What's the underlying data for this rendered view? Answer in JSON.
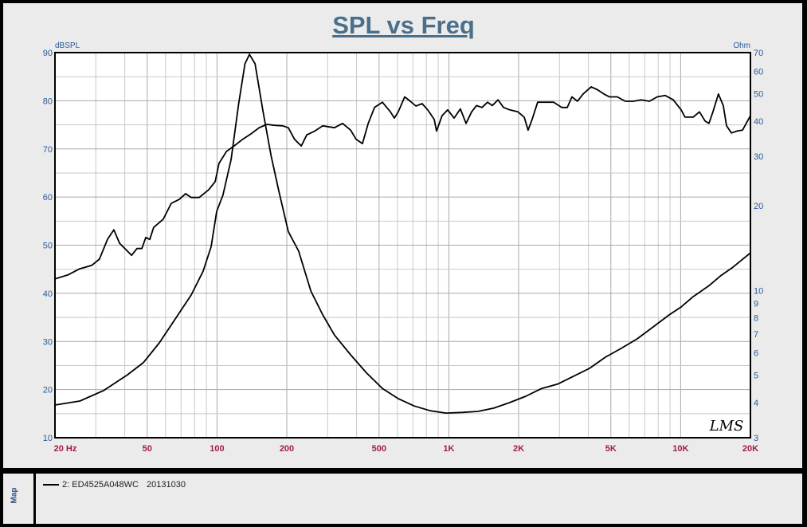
{
  "chart_data": {
    "type": "line",
    "title": "SPL vs Freq",
    "ylabel": "dBSPL",
    "y2label": "Ohm",
    "xscale": "log",
    "y2scale": "log",
    "xlim": [
      20,
      20000
    ],
    "ylim": [
      10,
      90
    ],
    "y2lim": [
      3,
      70
    ],
    "grid": true,
    "x_tick_labels": [
      {
        "v": 20,
        "t": "20  Hz"
      },
      {
        "v": 50,
        "t": "50"
      },
      {
        "v": 100,
        "t": "100"
      },
      {
        "v": 200,
        "t": "200"
      },
      {
        "v": 500,
        "t": "500"
      },
      {
        "v": 1000,
        "t": "1K"
      },
      {
        "v": 2000,
        "t": "2K"
      },
      {
        "v": 5000,
        "t": "5K"
      },
      {
        "v": 10000,
        "t": "10K"
      },
      {
        "v": 20000,
        "t": "20K"
      }
    ],
    "y_ticks": [
      10,
      20,
      30,
      40,
      50,
      60,
      70,
      80,
      90
    ],
    "y2_ticks": [
      3,
      4,
      5,
      6,
      7,
      8,
      9,
      10,
      20,
      30,
      40,
      50,
      60,
      70
    ],
    "colors": {
      "title": "#4a6f8a",
      "axis_left": "#2a5a9a",
      "axis_right": "#2a5a9a",
      "x_ticks": "#a01c48",
      "curve": "#000000",
      "grid": "#c8c8c8"
    },
    "series": [
      {
        "axis": "left",
        "unit": "dBSPL",
        "points": [
          [
            20,
            43.0
          ],
          [
            22.7,
            43.8
          ],
          [
            25.6,
            45.1
          ],
          [
            28.8,
            45.8
          ],
          [
            31.1,
            47.1
          ],
          [
            33.7,
            51.2
          ],
          [
            35.9,
            53.2
          ],
          [
            38,
            50.4
          ],
          [
            40.4,
            49.1
          ],
          [
            42.8,
            47.9
          ],
          [
            45.2,
            49.3
          ],
          [
            47.4,
            49.3
          ],
          [
            49.3,
            51.6
          ],
          [
            51.3,
            51.2
          ],
          [
            53.3,
            53.7
          ],
          [
            58.6,
            55.4
          ],
          [
            63.5,
            58.7
          ],
          [
            68.7,
            59.5
          ],
          [
            73.2,
            60.7
          ],
          [
            77.4,
            59.9
          ],
          [
            83.8,
            59.9
          ],
          [
            92,
            61.5
          ],
          [
            98.2,
            63.2
          ],
          [
            102,
            67.0
          ],
          [
            110,
            69.5
          ],
          [
            120,
            70.8
          ],
          [
            129,
            72.0
          ],
          [
            140,
            73.1
          ],
          [
            152,
            74.4
          ],
          [
            164,
            75.1
          ],
          [
            177,
            74.9
          ],
          [
            192,
            74.8
          ],
          [
            203,
            74.4
          ],
          [
            216,
            72.0
          ],
          [
            231,
            70.6
          ],
          [
            244,
            72.9
          ],
          [
            264,
            73.7
          ],
          [
            286,
            74.8
          ],
          [
            321,
            74.4
          ],
          [
            348,
            75.3
          ],
          [
            377,
            73.9
          ],
          [
            398,
            72.0
          ],
          [
            424,
            71.1
          ],
          [
            449,
            75.3
          ],
          [
            478,
            78.6
          ],
          [
            517,
            79.7
          ],
          [
            560,
            77.7
          ],
          [
            582,
            76.4
          ],
          [
            605,
            77.7
          ],
          [
            645,
            80.8
          ],
          [
            682,
            79.9
          ],
          [
            721,
            78.9
          ],
          [
            767,
            79.4
          ],
          [
            811,
            78.1
          ],
          [
            865,
            76.1
          ],
          [
            885,
            73.7
          ],
          [
            935,
            76.9
          ],
          [
            989,
            78.1
          ],
          [
            1054,
            76.4
          ],
          [
            1122,
            78.3
          ],
          [
            1186,
            75.3
          ],
          [
            1254,
            77.7
          ],
          [
            1316,
            79.0
          ],
          [
            1390,
            78.6
          ],
          [
            1469,
            79.7
          ],
          [
            1542,
            79.0
          ],
          [
            1629,
            80.2
          ],
          [
            1722,
            78.6
          ],
          [
            1832,
            78.1
          ],
          [
            1986,
            77.7
          ],
          [
            2114,
            76.6
          ],
          [
            2198,
            73.9
          ],
          [
            2286,
            76.1
          ],
          [
            2416,
            79.7
          ],
          [
            2618,
            79.7
          ],
          [
            2832,
            79.7
          ],
          [
            3069,
            78.6
          ],
          [
            3243,
            78.6
          ],
          [
            3396,
            80.8
          ],
          [
            3589,
            79.9
          ],
          [
            3793,
            81.4
          ],
          [
            4111,
            82.9
          ],
          [
            4375,
            82.3
          ],
          [
            4667,
            81.4
          ],
          [
            4931,
            80.8
          ],
          [
            5333,
            80.8
          ],
          [
            5768,
            79.9
          ],
          [
            6252,
            79.9
          ],
          [
            6761,
            80.2
          ],
          [
            7328,
            79.9
          ],
          [
            7925,
            80.8
          ],
          [
            8570,
            81.1
          ],
          [
            9290,
            80.2
          ],
          [
            10046,
            78.1
          ],
          [
            10447,
            76.6
          ],
          [
            11324,
            76.6
          ],
          [
            12052,
            77.7
          ],
          [
            12735,
            75.8
          ],
          [
            13243,
            75.3
          ],
          [
            13773,
            77.7
          ],
          [
            14555,
            81.4
          ],
          [
            15276,
            79.0
          ],
          [
            15777,
            74.8
          ],
          [
            16558,
            73.3
          ],
          [
            17500,
            73.7
          ],
          [
            18494,
            73.9
          ],
          [
            20000,
            76.9
          ]
        ]
      },
      {
        "axis": "right",
        "unit": "Ohm",
        "points": [
          [
            20,
            3.92
          ],
          [
            25.6,
            4.05
          ],
          [
            32.4,
            4.41
          ],
          [
            41.1,
            5.02
          ],
          [
            48.1,
            5.54
          ],
          [
            56.4,
            6.52
          ],
          [
            66.1,
            7.93
          ],
          [
            77.4,
            9.64
          ],
          [
            87.1,
            11.7
          ],
          [
            94.3,
            14.3
          ],
          [
            99.7,
            19.1
          ],
          [
            106,
            21.8
          ],
          [
            115,
            29.2
          ],
          [
            124,
            46.1
          ],
          [
            132,
            63.9
          ],
          [
            138,
            69.0
          ],
          [
            146,
            63.9
          ],
          [
            158,
            43.2
          ],
          [
            171,
            30.2
          ],
          [
            185,
            22.5
          ],
          [
            203,
            16.2
          ],
          [
            225,
            13.8
          ],
          [
            254,
            9.96
          ],
          [
            286,
            8.19
          ],
          [
            321,
            6.95
          ],
          [
            377,
            5.91
          ],
          [
            442,
            5.09
          ],
          [
            517,
            4.49
          ],
          [
            605,
            4.13
          ],
          [
            709,
            3.89
          ],
          [
            831,
            3.74
          ],
          [
            973,
            3.67
          ],
          [
            1140,
            3.69
          ],
          [
            1336,
            3.72
          ],
          [
            1563,
            3.82
          ],
          [
            1832,
            4.0
          ],
          [
            2148,
            4.21
          ],
          [
            2518,
            4.49
          ],
          [
            2944,
            4.65
          ],
          [
            3451,
            4.96
          ],
          [
            4046,
            5.29
          ],
          [
            4742,
            5.8
          ],
          [
            5546,
            6.23
          ],
          [
            6502,
            6.74
          ],
          [
            7621,
            7.43
          ],
          [
            8913,
            8.19
          ],
          [
            10046,
            8.74
          ],
          [
            11324,
            9.51
          ],
          [
            13243,
            10.4
          ],
          [
            14928,
            11.3
          ],
          [
            16788,
            12.1
          ],
          [
            20000,
            13.6
          ]
        ]
      }
    ]
  },
  "legend": {
    "entry": "2: ED4525A048WC",
    "date": "20131030"
  },
  "map_label": "Map",
  "logo": "LMS"
}
